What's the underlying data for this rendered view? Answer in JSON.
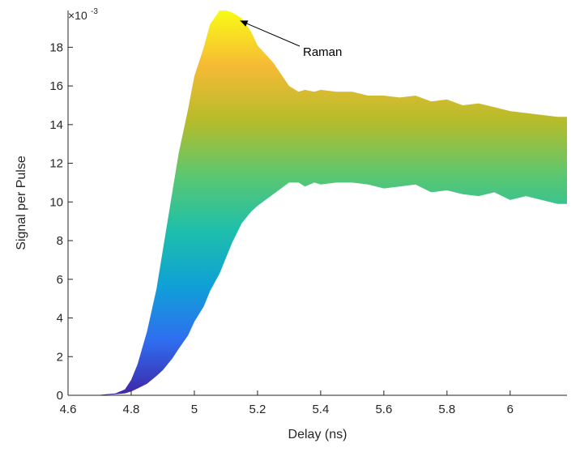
{
  "chart_data": {
    "type": "area",
    "title": "",
    "xlabel": "Delay (ns)",
    "ylabel": "Signal per Pulse",
    "xlim": [
      4.6,
      6.18
    ],
    "ylim": [
      0,
      0.0199
    ],
    "y_exponent_label": "×10",
    "y_exponent_power": "-3",
    "x_ticks": [
      4.6,
      4.8,
      5.0,
      5.2,
      5.4,
      5.6,
      5.8,
      6.0
    ],
    "x_tick_labels": [
      "4.6",
      "4.8",
      "5",
      "5.2",
      "5.4",
      "5.6",
      "5.8",
      "6"
    ],
    "y_ticks": [
      0,
      0.002,
      0.004,
      0.006,
      0.008,
      0.01,
      0.012,
      0.014,
      0.016,
      0.018
    ],
    "y_tick_labels": [
      "0",
      "2",
      "4",
      "6",
      "8",
      "10",
      "12",
      "14",
      "16",
      "18"
    ],
    "grid": false,
    "colormap": [
      "#3e26a8",
      "#2f6ef0",
      "#0fa1d6",
      "#1ebfaa",
      "#5bc770",
      "#b6bc2a",
      "#f6ba35",
      "#f9fb15"
    ],
    "upper": {
      "x": [
        4.6,
        4.65,
        4.7,
        4.75,
        4.78,
        4.8,
        4.82,
        4.85,
        4.88,
        4.9,
        4.93,
        4.95,
        4.98,
        5.0,
        5.03,
        5.05,
        5.08,
        5.1,
        5.12,
        5.15,
        5.18,
        5.2,
        5.25,
        5.3,
        5.33,
        5.35,
        5.38,
        5.4,
        5.45,
        5.5,
        5.55,
        5.6,
        5.65,
        5.7,
        5.75,
        5.8,
        5.85,
        5.9,
        5.95,
        6.0,
        6.05,
        6.1,
        6.15,
        6.18
      ],
      "y": [
        0.0,
        0.0,
        2e-05,
        0.0001,
        0.0003,
        0.0008,
        0.0016,
        0.0033,
        0.0055,
        0.0075,
        0.0105,
        0.0125,
        0.0148,
        0.0165,
        0.018,
        0.0192,
        0.0199,
        0.0199,
        0.0198,
        0.0195,
        0.0188,
        0.0181,
        0.0172,
        0.016,
        0.0157,
        0.0158,
        0.0157,
        0.0158,
        0.0157,
        0.0157,
        0.0155,
        0.0155,
        0.0154,
        0.0155,
        0.0152,
        0.0153,
        0.015,
        0.0151,
        0.0149,
        0.0147,
        0.0146,
        0.0145,
        0.0144,
        0.0144
      ]
    },
    "lower": {
      "x": [
        4.6,
        4.65,
        4.7,
        4.75,
        4.78,
        4.8,
        4.82,
        4.85,
        4.88,
        4.9,
        4.93,
        4.95,
        4.98,
        5.0,
        5.03,
        5.05,
        5.08,
        5.1,
        5.12,
        5.15,
        5.18,
        5.2,
        5.25,
        5.3,
        5.33,
        5.35,
        5.38,
        5.4,
        5.45,
        5.5,
        5.55,
        5.6,
        5.65,
        5.7,
        5.75,
        5.8,
        5.85,
        5.9,
        5.95,
        6.0,
        6.05,
        6.1,
        6.15,
        6.18
      ],
      "y": [
        0.0,
        0.0,
        0.0,
        5e-05,
        0.0001,
        0.0002,
        0.00035,
        0.0006,
        0.001,
        0.0013,
        0.0019,
        0.0024,
        0.0031,
        0.0038,
        0.0046,
        0.0054,
        0.0063,
        0.0071,
        0.0079,
        0.0089,
        0.0095,
        0.0098,
        0.0104,
        0.011,
        0.011,
        0.0108,
        0.011,
        0.0109,
        0.011,
        0.011,
        0.0109,
        0.0107,
        0.0108,
        0.0109,
        0.0105,
        0.0106,
        0.0104,
        0.0103,
        0.0105,
        0.0101,
        0.0103,
        0.0101,
        0.0099,
        0.0099
      ]
    },
    "annotations": [
      {
        "text": "Raman",
        "point_x": 5.135,
        "point_y": 0.0195
      }
    ]
  }
}
